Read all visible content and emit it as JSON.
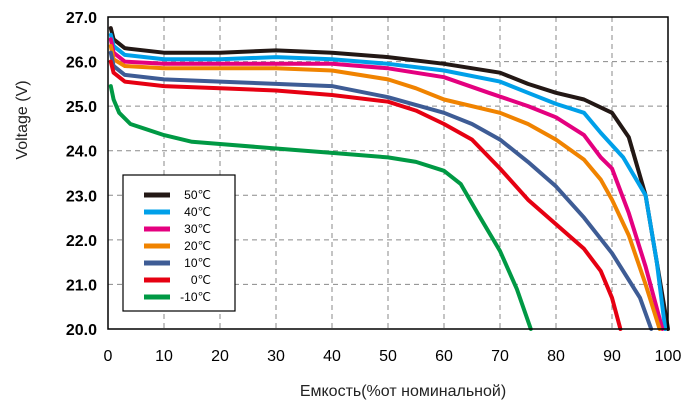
{
  "chart_data": {
    "type": "line",
    "xlabel": "Емкость(%от номинальной)",
    "ylabel": "Voltage (V)",
    "xlim": [
      0,
      100
    ],
    "ylim": [
      20,
      27
    ],
    "x_ticks": [
      "0",
      "10",
      "20",
      "30",
      "40",
      "50",
      "60",
      "70",
      "80",
      "90",
      "100"
    ],
    "y_ticks": [
      "20.0",
      "21.0",
      "22.0",
      "23.0",
      "24.0",
      "25.0",
      "26.0",
      "27.0"
    ],
    "grid": true,
    "legend_position": "bottom-left",
    "series": [
      {
        "name": "50℃",
        "color": "#231815",
        "points": [
          [
            0.5,
            26.75
          ],
          [
            1,
            26.5
          ],
          [
            3,
            26.3
          ],
          [
            10,
            26.2
          ],
          [
            20,
            26.2
          ],
          [
            30,
            26.25
          ],
          [
            40,
            26.2
          ],
          [
            50,
            26.1
          ],
          [
            60,
            25.95
          ],
          [
            70,
            25.75
          ],
          [
            75,
            25.5
          ],
          [
            80,
            25.3
          ],
          [
            85,
            25.15
          ],
          [
            90,
            24.85
          ],
          [
            93,
            24.3
          ],
          [
            96,
            23.0
          ],
          [
            98,
            21.5
          ],
          [
            100,
            20.0
          ]
        ]
      },
      {
        "name": "40℃",
        "color": "#00a0e9",
        "points": [
          [
            0.5,
            26.6
          ],
          [
            1,
            26.35
          ],
          [
            3,
            26.15
          ],
          [
            10,
            26.05
          ],
          [
            20,
            26.05
          ],
          [
            30,
            26.1
          ],
          [
            40,
            26.05
          ],
          [
            50,
            25.95
          ],
          [
            60,
            25.8
          ],
          [
            70,
            25.55
          ],
          [
            75,
            25.3
          ],
          [
            80,
            25.05
          ],
          [
            85,
            24.85
          ],
          [
            88,
            24.4
          ],
          [
            92,
            23.85
          ],
          [
            96,
            23.0
          ],
          [
            98,
            21.5
          ],
          [
            99.5,
            20.0
          ]
        ]
      },
      {
        "name": "30℃",
        "color": "#e4007f",
        "points": [
          [
            0.5,
            26.5
          ],
          [
            1,
            26.2
          ],
          [
            3,
            26.0
          ],
          [
            10,
            25.95
          ],
          [
            20,
            25.95
          ],
          [
            30,
            25.95
          ],
          [
            40,
            25.95
          ],
          [
            50,
            25.85
          ],
          [
            60,
            25.65
          ],
          [
            68,
            25.3
          ],
          [
            75,
            25.0
          ],
          [
            80,
            24.75
          ],
          [
            85,
            24.35
          ],
          [
            88,
            23.85
          ],
          [
            90,
            23.6
          ],
          [
            93,
            22.6
          ],
          [
            96,
            21.4
          ],
          [
            99,
            20.0
          ]
        ]
      },
      {
        "name": "20℃",
        "color": "#f08300",
        "points": [
          [
            0.5,
            26.35
          ],
          [
            1,
            26.05
          ],
          [
            3,
            25.9
          ],
          [
            10,
            25.85
          ],
          [
            20,
            25.85
          ],
          [
            30,
            25.85
          ],
          [
            40,
            25.8
          ],
          [
            50,
            25.6
          ],
          [
            55,
            25.4
          ],
          [
            60,
            25.15
          ],
          [
            70,
            24.85
          ],
          [
            75,
            24.6
          ],
          [
            80,
            24.25
          ],
          [
            85,
            23.8
          ],
          [
            88,
            23.35
          ],
          [
            90,
            22.9
          ],
          [
            93,
            22.1
          ],
          [
            96,
            21.0
          ],
          [
            98.5,
            20.0
          ]
        ]
      },
      {
        "name": "10℃",
        "color": "#3e5c95",
        "points": [
          [
            0.5,
            26.2
          ],
          [
            1,
            25.9
          ],
          [
            3,
            25.7
          ],
          [
            10,
            25.6
          ],
          [
            20,
            25.55
          ],
          [
            30,
            25.5
          ],
          [
            40,
            25.45
          ],
          [
            50,
            25.2
          ],
          [
            60,
            24.85
          ],
          [
            65,
            24.6
          ],
          [
            70,
            24.25
          ],
          [
            75,
            23.75
          ],
          [
            80,
            23.2
          ],
          [
            85,
            22.5
          ],
          [
            90,
            21.7
          ],
          [
            95,
            20.7
          ],
          [
            97,
            20.0
          ]
        ]
      },
      {
        "name": "0℃",
        "color": "#e60012",
        "points": [
          [
            0.5,
            26.0
          ],
          [
            1,
            25.75
          ],
          [
            3,
            25.55
          ],
          [
            10,
            25.45
          ],
          [
            20,
            25.4
          ],
          [
            30,
            25.35
          ],
          [
            40,
            25.25
          ],
          [
            50,
            25.1
          ],
          [
            55,
            24.9
          ],
          [
            60,
            24.6
          ],
          [
            65,
            24.25
          ],
          [
            70,
            23.6
          ],
          [
            75,
            22.9
          ],
          [
            80,
            22.35
          ],
          [
            85,
            21.8
          ],
          [
            88,
            21.3
          ],
          [
            90,
            20.7
          ],
          [
            91.5,
            20.0
          ]
        ]
      },
      {
        "name": "-10℃",
        "color": "#009944",
        "points": [
          [
            0.5,
            25.45
          ],
          [
            1,
            25.15
          ],
          [
            2,
            24.85
          ],
          [
            4,
            24.6
          ],
          [
            10,
            24.35
          ],
          [
            15,
            24.2
          ],
          [
            20,
            24.15
          ],
          [
            30,
            24.05
          ],
          [
            40,
            23.95
          ],
          [
            50,
            23.85
          ],
          [
            55,
            23.75
          ],
          [
            60,
            23.55
          ],
          [
            63,
            23.25
          ],
          [
            66,
            22.6
          ],
          [
            70,
            21.75
          ],
          [
            73,
            20.9
          ],
          [
            75.5,
            20.0
          ]
        ]
      }
    ]
  }
}
